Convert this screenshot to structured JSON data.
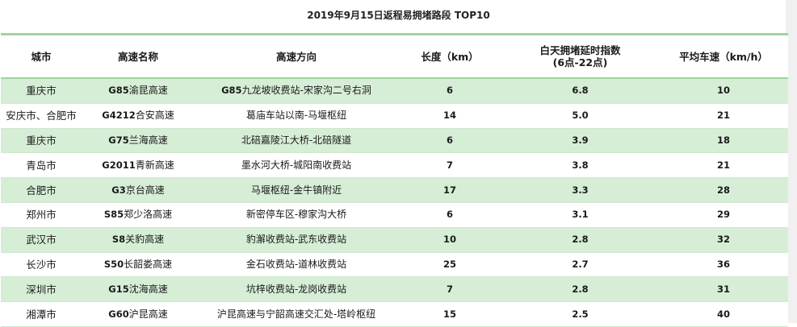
{
  "title": "2019年9月15日返程易拥堵路段 TOP10",
  "headers": {
    "city": "城市",
    "highway": "高速名称",
    "direction": "高速方向",
    "length": "长度（km）",
    "index_line1": "白天拥堵延时指数",
    "index_line2": "(6点-22点)",
    "speed": "平均车速（km/h）"
  },
  "rows": [
    {
      "city": "重庆市",
      "code": "G85",
      "highway": "渝昆高速",
      "dir_code": "G85",
      "direction": "九龙坡收费站-宋家沟二号右洞",
      "length": "6",
      "index": "6.8",
      "speed": "10"
    },
    {
      "city": "安庆市、合肥市",
      "code": "G4212",
      "highway": "合安高速",
      "dir_code": "",
      "direction": "葛庙车站以南-马堰枢纽",
      "length": "14",
      "index": "5.0",
      "speed": "21"
    },
    {
      "city": "重庆市",
      "code": "G75",
      "highway": "兰海高速",
      "dir_code": "",
      "direction": "北碚嘉陵江大桥-北碚隧道",
      "length": "6",
      "index": "3.9",
      "speed": "18"
    },
    {
      "city": "青岛市",
      "code": "G2011",
      "highway": "青新高速",
      "dir_code": "",
      "direction": "墨水河大桥-城阳南收费站",
      "length": "7",
      "index": "3.8",
      "speed": "21"
    },
    {
      "city": "合肥市",
      "code": "G3",
      "highway": "京台高速",
      "dir_code": "",
      "direction": "马堰枢纽-金牛镇附近",
      "length": "17",
      "index": "3.3",
      "speed": "28"
    },
    {
      "city": "郑州市",
      "code": "S85",
      "highway": "郑少洛高速",
      "dir_code": "",
      "direction": "新密停车区-穆家沟大桥",
      "length": "6",
      "index": "3.1",
      "speed": "29"
    },
    {
      "city": "武汉市",
      "code": "S8",
      "highway": "关豹高速",
      "dir_code": "",
      "direction": "豹澥收费站-武东收费站",
      "length": "10",
      "index": "2.8",
      "speed": "32"
    },
    {
      "city": "长沙市",
      "code": "S50",
      "highway": "长韶娄高速",
      "dir_code": "",
      "direction": "金石收费站-道林收费站",
      "length": "25",
      "index": "2.7",
      "speed": "36"
    },
    {
      "city": "深圳市",
      "code": "G15",
      "highway": "沈海高速",
      "dir_code": "",
      "direction": "坑梓收费站-龙岗收费站",
      "length": "7",
      "index": "2.8",
      "speed": "31"
    },
    {
      "city": "湘潭市",
      "code": "G60",
      "highway": "沪昆高速",
      "dir_code": "",
      "direction": "沪昆高速与宁韶高速交汇处-塔岭枢纽",
      "length": "15",
      "index": "2.5",
      "speed": "40"
    }
  ],
  "colors": {
    "stripe": "#d6eed6",
    "rule": "#9fd49f"
  }
}
